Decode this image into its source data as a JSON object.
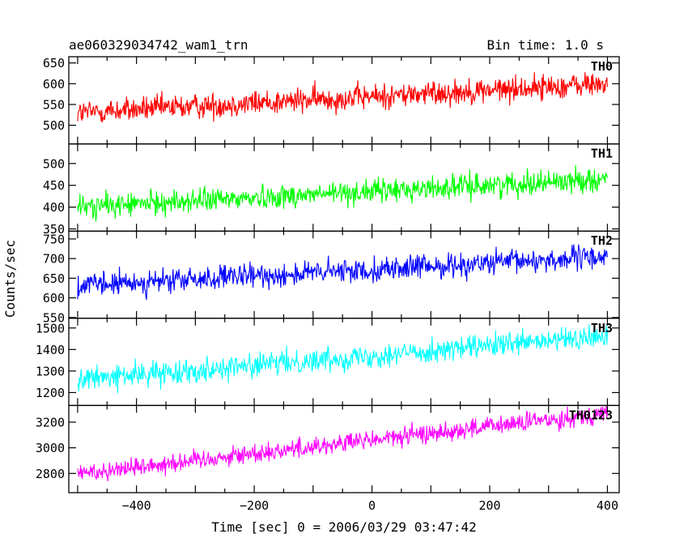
{
  "header": {
    "left_title": "ae060329034742_wam1_trn",
    "right_title": "Bin time: 1.0 s"
  },
  "chart_data": {
    "type": "line",
    "ylabel": "Counts/sec",
    "xlabel": "Time [sec] 0 = 2006/03/29 03:47:42",
    "xlim": [
      -515,
      420
    ],
    "x_range": [
      -500,
      400
    ],
    "xticks": [
      -400,
      -200,
      0,
      200,
      400
    ],
    "grid": false,
    "panels": [
      {
        "name": "TH0",
        "color": "#ff0000",
        "ylim": [
          455,
          665
        ],
        "yticks": [
          500,
          550,
          600,
          650
        ],
        "trend": {
          "start": 530,
          "end": 600
        },
        "spread": 28
      },
      {
        "name": "TH1",
        "color": "#00ff00",
        "ylim": [
          345,
          545
        ],
        "yticks": [
          350,
          400,
          450,
          500
        ],
        "trend": {
          "start": 400,
          "end": 465
        },
        "spread": 25
      },
      {
        "name": "TH2",
        "color": "#0000ff",
        "ylim": [
          548,
          770
        ],
        "yticks": [
          550,
          600,
          650,
          700,
          750
        ],
        "trend": {
          "start": 630,
          "end": 705
        },
        "spread": 28
      },
      {
        "name": "TH3",
        "color": "#00ffff",
        "ylim": [
          1140,
          1545
        ],
        "yticks": [
          1200,
          1300,
          1400,
          1500
        ],
        "trend": {
          "start": 1260,
          "end": 1460
        },
        "spread": 50
      },
      {
        "name": "TH0123",
        "color": "#ff00ff",
        "ylim": [
          2650,
          3330
        ],
        "yticks": [
          2800,
          3000,
          3200
        ],
        "trend": {
          "start": 2800,
          "end": 3270
        },
        "spread": 70
      }
    ]
  }
}
